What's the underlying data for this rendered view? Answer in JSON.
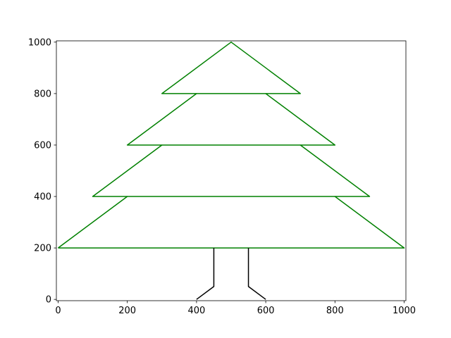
{
  "chart_data": {
    "type": "line",
    "title": "",
    "xlabel": "",
    "ylabel": "",
    "xlim": [
      -5,
      1005
    ],
    "ylim": [
      -5,
      1005
    ],
    "grid": false,
    "x_ticks": [
      0,
      200,
      400,
      600,
      800,
      1000
    ],
    "x_tick_labels": [
      "0",
      "200",
      "400",
      "600",
      "800",
      "1000"
    ],
    "y_ticks": [
      0,
      200,
      400,
      600,
      800,
      1000
    ],
    "y_tick_labels": [
      "0",
      "200",
      "400",
      "600",
      "800",
      "1000"
    ],
    "series": [
      {
        "color": "#008000",
        "points": [
          [
            0,
            200
          ],
          [
            1000,
            200
          ],
          [
            800,
            400
          ],
          [
            900,
            400
          ],
          [
            700,
            600
          ],
          [
            800,
            600
          ],
          [
            600,
            800
          ],
          [
            700,
            800
          ],
          [
            500,
            1000
          ],
          [
            300,
            800
          ],
          [
            400,
            800
          ],
          [
            200,
            600
          ],
          [
            300,
            600
          ],
          [
            100,
            400
          ],
          [
            200,
            400
          ],
          [
            0,
            200
          ]
        ]
      },
      {
        "color": "#008000",
        "points": [
          [
            200,
            400
          ],
          [
            800,
            400
          ]
        ]
      },
      {
        "color": "#008000",
        "points": [
          [
            300,
            600
          ],
          [
            700,
            600
          ]
        ]
      },
      {
        "color": "#008000",
        "points": [
          [
            400,
            800
          ],
          [
            600,
            800
          ]
        ]
      },
      {
        "color": "#000000",
        "points": [
          [
            450,
            200
          ],
          [
            450,
            50
          ],
          [
            400,
            0
          ]
        ]
      },
      {
        "color": "#000000",
        "points": [
          [
            550,
            200
          ],
          [
            550,
            50
          ],
          [
            600,
            0
          ]
        ]
      }
    ]
  }
}
